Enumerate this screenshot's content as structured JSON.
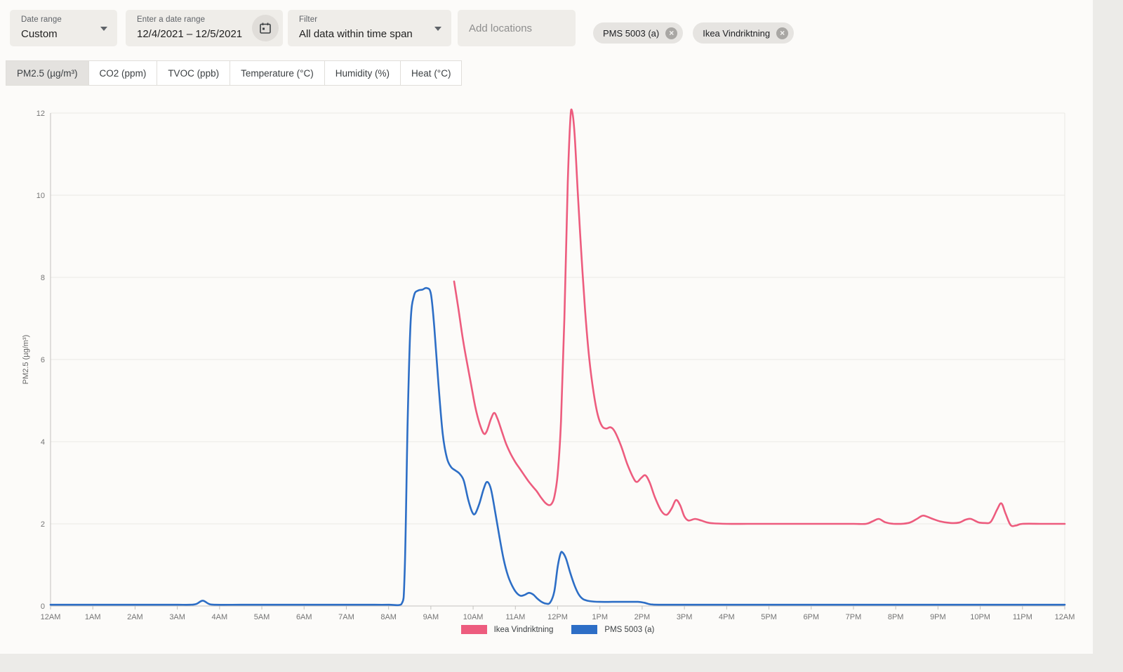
{
  "filters": {
    "date_range": {
      "label": "Date range",
      "value": "Custom"
    },
    "date_input": {
      "label": "Enter a date range",
      "value": "12/4/2021 – 12/5/2021"
    },
    "filter": {
      "label": "Filter",
      "value": "All data within time span"
    },
    "add_locations_placeholder": "Add locations",
    "location_chips": [
      {
        "label": "PMS 5003 (a)"
      },
      {
        "label": "Ikea Vindriktning"
      }
    ]
  },
  "tabs": [
    {
      "label": "PM2.5 (µg/m³)",
      "active": true
    },
    {
      "label": "CO2 (ppm)",
      "active": false
    },
    {
      "label": "TVOC (ppb)",
      "active": false
    },
    {
      "label": "Temperature (°C)",
      "active": false
    },
    {
      "label": "Humidity (%)",
      "active": false
    },
    {
      "label": "Heat (°C)",
      "active": false
    }
  ],
  "chart_data": {
    "type": "line",
    "title": "",
    "xlabel": "",
    "ylabel": "PM2.5 (µg/m³)",
    "ylim": [
      0,
      12
    ],
    "y_ticks": [
      0,
      2,
      4,
      6,
      8,
      10,
      12
    ],
    "x_hours_range": [
      0,
      24
    ],
    "x_tick_labels": [
      "12AM",
      "1AM",
      "2AM",
      "3AM",
      "4AM",
      "5AM",
      "6AM",
      "7AM",
      "8AM",
      "9AM",
      "10AM",
      "11AM",
      "12PM",
      "1PM",
      "2PM",
      "3PM",
      "4PM",
      "5PM",
      "6PM",
      "7PM",
      "8PM",
      "9PM",
      "10PM",
      "11PM",
      "12AM"
    ],
    "grid": "horizontal",
    "legend_position": "bottom-center",
    "colors": {
      "axis_text": "#757575",
      "gridline": "#eae8e5",
      "axis_line": "#c4c2bf"
    },
    "series": [
      {
        "name": "Ikea Vindriktning",
        "color": "#ed5c7e",
        "points": [
          [
            9.55,
            7.9
          ],
          [
            9.65,
            7.25
          ],
          [
            9.75,
            6.55
          ],
          [
            9.85,
            5.95
          ],
          [
            9.95,
            5.4
          ],
          [
            10.05,
            4.85
          ],
          [
            10.15,
            4.45
          ],
          [
            10.25,
            4.2
          ],
          [
            10.32,
            4.25
          ],
          [
            10.42,
            4.55
          ],
          [
            10.5,
            4.7
          ],
          [
            10.58,
            4.55
          ],
          [
            10.68,
            4.25
          ],
          [
            10.78,
            3.95
          ],
          [
            10.88,
            3.72
          ],
          [
            11.0,
            3.5
          ],
          [
            11.1,
            3.35
          ],
          [
            11.2,
            3.2
          ],
          [
            11.3,
            3.05
          ],
          [
            11.4,
            2.92
          ],
          [
            11.5,
            2.8
          ],
          [
            11.6,
            2.65
          ],
          [
            11.7,
            2.52
          ],
          [
            11.78,
            2.46
          ],
          [
            11.85,
            2.48
          ],
          [
            11.92,
            2.65
          ],
          [
            12.0,
            3.2
          ],
          [
            12.08,
            4.5
          ],
          [
            12.16,
            7.0
          ],
          [
            12.24,
            10.3
          ],
          [
            12.3,
            11.85
          ],
          [
            12.34,
            12.05
          ],
          [
            12.4,
            11.5
          ],
          [
            12.48,
            10.0
          ],
          [
            12.56,
            8.6
          ],
          [
            12.65,
            7.2
          ],
          [
            12.75,
            6.0
          ],
          [
            12.85,
            5.2
          ],
          [
            12.95,
            4.65
          ],
          [
            13.05,
            4.38
          ],
          [
            13.15,
            4.32
          ],
          [
            13.25,
            4.35
          ],
          [
            13.35,
            4.25
          ],
          [
            13.5,
            3.9
          ],
          [
            13.65,
            3.45
          ],
          [
            13.8,
            3.1
          ],
          [
            13.88,
            3.02
          ],
          [
            13.98,
            3.12
          ],
          [
            14.08,
            3.18
          ],
          [
            14.18,
            3.0
          ],
          [
            14.3,
            2.65
          ],
          [
            14.45,
            2.32
          ],
          [
            14.58,
            2.22
          ],
          [
            14.7,
            2.38
          ],
          [
            14.8,
            2.58
          ],
          [
            14.9,
            2.45
          ],
          [
            15.0,
            2.18
          ],
          [
            15.1,
            2.08
          ],
          [
            15.25,
            2.12
          ],
          [
            15.4,
            2.08
          ],
          [
            15.6,
            2.02
          ],
          [
            16,
            2.0
          ],
          [
            16.5,
            2.0
          ],
          [
            17,
            2.0
          ],
          [
            17.5,
            2.0
          ],
          [
            18,
            2.0
          ],
          [
            18.5,
            2.0
          ],
          [
            19,
            2.0
          ],
          [
            19.3,
            2.0
          ],
          [
            19.45,
            2.06
          ],
          [
            19.6,
            2.12
          ],
          [
            19.75,
            2.04
          ],
          [
            19.95,
            2.0
          ],
          [
            20.3,
            2.02
          ],
          [
            20.5,
            2.12
          ],
          [
            20.65,
            2.2
          ],
          [
            20.85,
            2.13
          ],
          [
            21.05,
            2.06
          ],
          [
            21.3,
            2.02
          ],
          [
            21.5,
            2.03
          ],
          [
            21.65,
            2.1
          ],
          [
            21.78,
            2.12
          ],
          [
            21.95,
            2.04
          ],
          [
            22.1,
            2.02
          ],
          [
            22.25,
            2.05
          ],
          [
            22.4,
            2.35
          ],
          [
            22.5,
            2.5
          ],
          [
            22.6,
            2.25
          ],
          [
            22.72,
            1.97
          ],
          [
            22.85,
            1.96
          ],
          [
            23.0,
            2.0
          ],
          [
            23.5,
            2.0
          ],
          [
            24,
            2.0
          ]
        ]
      },
      {
        "name": "PMS 5003 (a)",
        "color": "#2d6ec6",
        "points": [
          [
            0,
            0.03
          ],
          [
            0.5,
            0.03
          ],
          [
            1,
            0.03
          ],
          [
            1.5,
            0.03
          ],
          [
            2,
            0.03
          ],
          [
            2.5,
            0.03
          ],
          [
            3,
            0.03
          ],
          [
            3.3,
            0.03
          ],
          [
            3.45,
            0.05
          ],
          [
            3.6,
            0.13
          ],
          [
            3.75,
            0.05
          ],
          [
            3.9,
            0.03
          ],
          [
            4.5,
            0.03
          ],
          [
            5,
            0.03
          ],
          [
            5.5,
            0.03
          ],
          [
            6,
            0.03
          ],
          [
            6.5,
            0.03
          ],
          [
            7,
            0.03
          ],
          [
            7.5,
            0.03
          ],
          [
            8,
            0.03
          ],
          [
            8.3,
            0.04
          ],
          [
            8.38,
            0.8
          ],
          [
            8.45,
            4.5
          ],
          [
            8.52,
            6.9
          ],
          [
            8.6,
            7.55
          ],
          [
            8.7,
            7.68
          ],
          [
            8.8,
            7.7
          ],
          [
            8.9,
            7.74
          ],
          [
            9.0,
            7.6
          ],
          [
            9.08,
            6.8
          ],
          [
            9.18,
            5.4
          ],
          [
            9.28,
            4.2
          ],
          [
            9.38,
            3.6
          ],
          [
            9.48,
            3.38
          ],
          [
            9.58,
            3.3
          ],
          [
            9.68,
            3.22
          ],
          [
            9.78,
            3.05
          ],
          [
            9.88,
            2.6
          ],
          [
            9.98,
            2.28
          ],
          [
            10.05,
            2.25
          ],
          [
            10.15,
            2.5
          ],
          [
            10.25,
            2.85
          ],
          [
            10.33,
            3.02
          ],
          [
            10.42,
            2.85
          ],
          [
            10.52,
            2.3
          ],
          [
            10.62,
            1.7
          ],
          [
            10.72,
            1.15
          ],
          [
            10.82,
            0.75
          ],
          [
            10.92,
            0.5
          ],
          [
            11.02,
            0.33
          ],
          [
            11.12,
            0.25
          ],
          [
            11.22,
            0.27
          ],
          [
            11.32,
            0.32
          ],
          [
            11.42,
            0.28
          ],
          [
            11.52,
            0.18
          ],
          [
            11.62,
            0.1
          ],
          [
            11.72,
            0.06
          ],
          [
            11.82,
            0.08
          ],
          [
            11.92,
            0.35
          ],
          [
            12.0,
            0.95
          ],
          [
            12.07,
            1.28
          ],
          [
            12.12,
            1.3
          ],
          [
            12.2,
            1.15
          ],
          [
            12.3,
            0.8
          ],
          [
            12.4,
            0.5
          ],
          [
            12.5,
            0.28
          ],
          [
            12.6,
            0.17
          ],
          [
            12.75,
            0.12
          ],
          [
            13,
            0.1
          ],
          [
            13.3,
            0.1
          ],
          [
            13.6,
            0.1
          ],
          [
            13.9,
            0.1
          ],
          [
            14.05,
            0.08
          ],
          [
            14.2,
            0.04
          ],
          [
            14.4,
            0.03
          ],
          [
            15,
            0.03
          ],
          [
            16,
            0.03
          ],
          [
            17,
            0.03
          ],
          [
            18,
            0.03
          ],
          [
            19,
            0.03
          ],
          [
            20,
            0.03
          ],
          [
            21,
            0.03
          ],
          [
            22,
            0.03
          ],
          [
            23,
            0.03
          ],
          [
            24,
            0.03
          ]
        ]
      }
    ]
  }
}
